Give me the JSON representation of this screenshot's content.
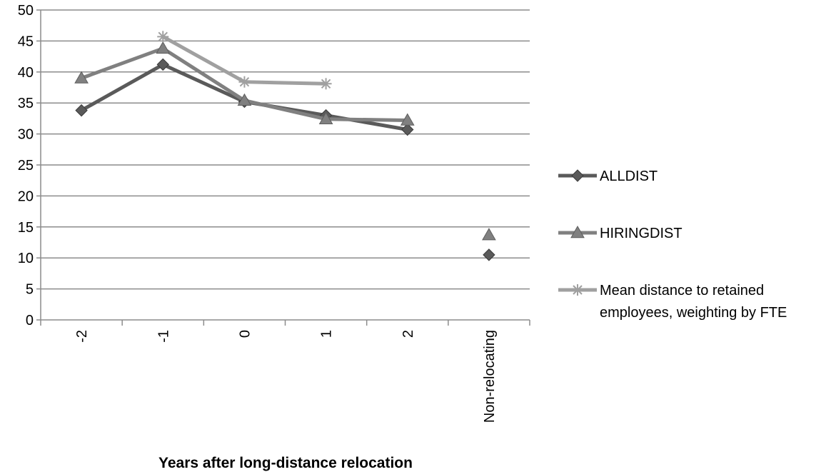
{
  "chart_data": {
    "type": "line",
    "title": "",
    "xlabel": "Years after long-distance relocation",
    "ylabel": "",
    "categories": [
      "-2",
      "-1",
      "0",
      "1",
      "2",
      "Non-relocating"
    ],
    "ylim": [
      0,
      50
    ],
    "yticks": [
      0,
      5,
      10,
      15,
      20,
      25,
      30,
      35,
      40,
      45,
      50
    ],
    "grid": true,
    "legend_position": "right",
    "series": [
      {
        "name": "ALLDIST",
        "marker": "diamond",
        "color": "#5a5a5a",
        "values": [
          33.8,
          41.2,
          35.2,
          33.0,
          30.7,
          null
        ],
        "separate_point": {
          "category": "Non-relocating",
          "value": 10.5
        }
      },
      {
        "name": "HIRINGDIST",
        "marker": "triangle",
        "color": "#808080",
        "values": [
          39.0,
          43.8,
          35.4,
          32.4,
          32.2,
          null
        ],
        "separate_point": {
          "category": "Non-relocating",
          "value": 13.7
        }
      },
      {
        "name": "Mean distance to retained employees, weighting by FTE",
        "legend_lines": [
          "Mean distance to retained",
          "employees, weighting by FTE"
        ],
        "marker": "star",
        "color": "#a0a0a0",
        "values": [
          null,
          45.7,
          38.4,
          38.1,
          null,
          null
        ]
      }
    ]
  }
}
